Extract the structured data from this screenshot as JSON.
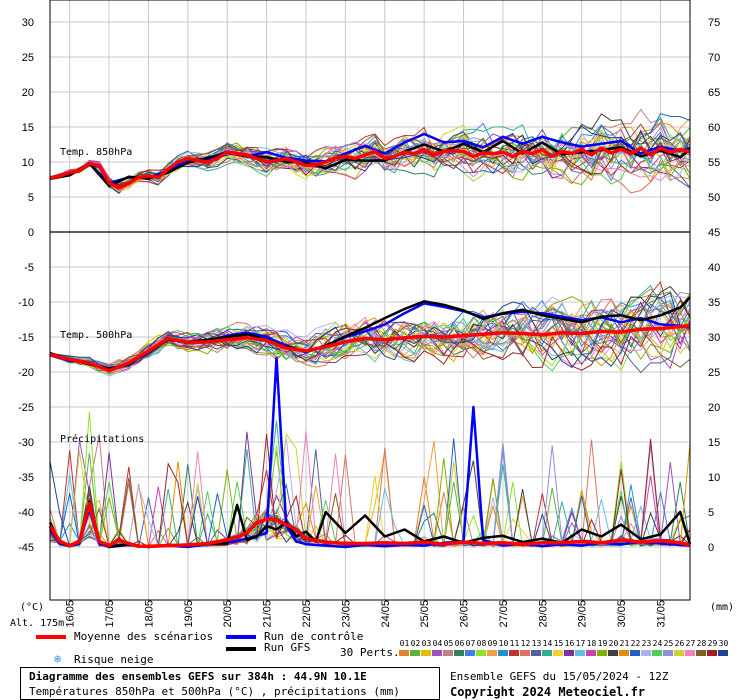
{
  "chart_data": {
    "type": "line",
    "dates": [
      "16/05",
      "17/05",
      "18/05",
      "19/05",
      "20/05",
      "21/05",
      "22/05",
      "23/05",
      "24/05",
      "25/05",
      "26/05",
      "27/05",
      "28/05",
      "29/05",
      "30/05",
      "31/05"
    ],
    "left_axis": {
      "unit_label": "(°C)",
      "ticks": [
        30,
        25,
        20,
        15,
        10,
        5,
        0,
        -5,
        -10,
        -15,
        -20,
        -25,
        -30,
        -35,
        -40,
        -45
      ]
    },
    "right_axis": {
      "unit_label": "(mm)",
      "upper_ticks": [
        75,
        70,
        65,
        60,
        55,
        50
      ],
      "lower_ticks": [
        45,
        40,
        35,
        30,
        25,
        20,
        15,
        10,
        5,
        0
      ]
    },
    "panels": [
      {
        "label": "Temp. 850hPa",
        "quantity": "Temperature 850hPa (°C)",
        "ylim": [
          0,
          30
        ],
        "x_range": [
          15.5,
          31.75
        ],
        "series": [
          {
            "name": "Moyenne des scénarios",
            "color": "#ff0000",
            "x": [
              15.5,
              15.75,
              16,
              16.25,
              16.5,
              16.75,
              17,
              17.25,
              17.5,
              17.75,
              18,
              18.25,
              18.5,
              18.75,
              19,
              19.25,
              19.5,
              19.75,
              20,
              20.25,
              20.5,
              20.75,
              21,
              21.25,
              21.5,
              21.75,
              22,
              22.25,
              22.5,
              22.75,
              23,
              23.25,
              23.5,
              23.75,
              24,
              24.25,
              24.5,
              24.75,
              25,
              25.25,
              25.5,
              25.75,
              26,
              26.25,
              26.5,
              26.75,
              27,
              27.25,
              27.5,
              27.75,
              28,
              28.25,
              28.5,
              28.75,
              29,
              29.25,
              29.5,
              29.75,
              30,
              30.25,
              30.5,
              30.75,
              31,
              31.25,
              31.5,
              31.75
            ],
            "y": [
              7.7,
              8,
              8.5,
              8.8,
              9.8,
              9.5,
              7,
              6.3,
              7,
              7.8,
              8,
              7.8,
              9,
              10,
              10.5,
              10.2,
              10,
              10.5,
              11.4,
              11.2,
              11,
              10.5,
              10,
              10.2,
              10.5,
              10,
              9.5,
              9.6,
              10,
              10.6,
              10.8,
              10.5,
              11,
              11.5,
              10.5,
              10.8,
              11.4,
              11.2,
              11.8,
              11,
              11.5,
              11.6,
              11.5,
              10.8,
              11.3,
              11.2,
              11.4,
              10.8,
              11.5,
              11.2,
              11.8,
              10.8,
              11.5,
              11.2,
              11.8,
              11,
              12,
              11.3,
              11.8,
              11.2,
              12,
              11,
              12,
              11.4,
              11.8,
              11.5
            ]
          },
          {
            "name": "Run de contrôle",
            "color": "#0000ff",
            "x": [
              15.5,
              16,
              16.5,
              17,
              17.5,
              18,
              18.5,
              19,
              19.5,
              20,
              20.5,
              21,
              21.5,
              22,
              22.5,
              23,
              23.5,
              24,
              24.5,
              25,
              25.5,
              26,
              26.5,
              27,
              27.5,
              28,
              28.5,
              29,
              29.5,
              30,
              30.5,
              31,
              31.5,
              31.75
            ],
            "y": [
              7.8,
              8.2,
              9.8,
              7,
              7.8,
              7.7,
              8.8,
              10.3,
              10.4,
              11.5,
              10.8,
              11.4,
              10.6,
              10.2,
              10.1,
              11.2,
              12.3,
              11.2,
              12.8,
              14,
              12.8,
              13,
              12.1,
              13.6,
              12.6,
              13.6,
              12.8,
              12.2,
              12.6,
              13,
              11.2,
              12.2,
              11.6,
              12
            ]
          },
          {
            "name": "Run GFS",
            "color": "#000000",
            "x": [
              15.5,
              16,
              16.5,
              17,
              17.5,
              18,
              18.5,
              19,
              19.5,
              20,
              20.5,
              21,
              21.5,
              22,
              22.5,
              23,
              23.5,
              24,
              24.5,
              25,
              25.5,
              26,
              26.5,
              27,
              27.5,
              28,
              28.5,
              29,
              29.5,
              30,
              30.5,
              31,
              31.5,
              31.75
            ],
            "y": [
              7.6,
              8.1,
              9.8,
              6.6,
              7.9,
              7.6,
              8.5,
              9.9,
              10.6,
              11.3,
              10.8,
              10.7,
              10,
              9.9,
              9.1,
              10.3,
              10.2,
              10.2,
              11.5,
              12.5,
              11.5,
              12.6,
              11.4,
              13,
              11.2,
              12.8,
              11.1,
              11.4,
              11.7,
              12.1,
              10.8,
              11.6,
              10.7,
              11.8
            ]
          }
        ]
      },
      {
        "label": "Temp. 500hPa",
        "quantity": "Temperature 500hPa (°C)",
        "ylim": [
          -25,
          0
        ],
        "x_range": [
          15.5,
          31.75
        ],
        "series": [
          {
            "name": "Moyenne des scénarios",
            "color": "#ff0000",
            "x": [
              15.5,
              16,
              16.5,
              17,
              17.5,
              18,
              18.5,
              19,
              19.5,
              20,
              20.5,
              21,
              21.5,
              22,
              22.5,
              23,
              23.5,
              24,
              24.5,
              25,
              25.5,
              26,
              26.5,
              27,
              27.5,
              28,
              28.5,
              29,
              29.5,
              30,
              30.5,
              31,
              31.5,
              31.75
            ],
            "y": [
              -17.5,
              -18.2,
              -18.7,
              -19.8,
              -18.7,
              -17,
              -15.2,
              -15.8,
              -15.7,
              -15.4,
              -15.1,
              -15.5,
              -16.6,
              -17,
              -16.4,
              -15.7,
              -15.2,
              -15.4,
              -15.1,
              -14.9,
              -15,
              -14.8,
              -14.6,
              -14.4,
              -14.5,
              -14.7,
              -14.4,
              -14.5,
              -14.2,
              -14.3,
              -13.9,
              -13.8,
              -13.5,
              -13.4
            ]
          },
          {
            "name": "Run de contrôle",
            "color": "#0000ff",
            "x": [
              15.5,
              16,
              16.5,
              17,
              17.5,
              18,
              18.5,
              19,
              19.5,
              20,
              20.5,
              21,
              21.5,
              22,
              22.5,
              23,
              23.5,
              24,
              24.5,
              25,
              25.5,
              26,
              26.5,
              27,
              27.5,
              28,
              28.5,
              29,
              29.5,
              30,
              30.5,
              31,
              31.5,
              31.75
            ],
            "y": [
              -17.6,
              -18.4,
              -18.6,
              -19.9,
              -18.6,
              -17.3,
              -15.2,
              -15.9,
              -15.6,
              -14.8,
              -14.4,
              -15,
              -16.2,
              -17.2,
              -16.2,
              -15,
              -14.2,
              -13.2,
              -11.6,
              -10.2,
              -10.7,
              -11.3,
              -12.2,
              -11.7,
              -11.4,
              -11.6,
              -12.1,
              -12.6,
              -12.2,
              -12.9,
              -12.3,
              -13.2,
              -13.4,
              -13.6
            ]
          },
          {
            "name": "Run GFS",
            "color": "#000000",
            "x": [
              15.5,
              16,
              16.5,
              17,
              17.5,
              18,
              18.5,
              19,
              19.5,
              20,
              20.5,
              21,
              21.5,
              22,
              22.5,
              23,
              23.5,
              24,
              24.5,
              25,
              25.5,
              26,
              26.5,
              27,
              27.5,
              28,
              28.5,
              29,
              29.5,
              30,
              30.5,
              31,
              31.5,
              31.75
            ],
            "y": [
              -17.3,
              -18.2,
              -18.9,
              -19.5,
              -18.9,
              -17.1,
              -15.4,
              -15.7,
              -15.4,
              -15,
              -14.6,
              -15.4,
              -16.4,
              -17,
              -16.3,
              -14.9,
              -13.7,
              -12.3,
              -11,
              -9.9,
              -10.4,
              -11.2,
              -12.4,
              -11.6,
              -11.1,
              -11.9,
              -12.4,
              -12.9,
              -12.1,
              -11.9,
              -12.6,
              -11.9,
              -10.8,
              -9.3
            ]
          }
        ]
      },
      {
        "label": "Précipitations",
        "quantity": "Précipitations (mm)",
        "ylim": [
          0,
          45
        ],
        "x_range": [
          15.5,
          31.75
        ],
        "series": [
          {
            "name": "Moyenne des scénarios",
            "color": "#ff0000",
            "x": [
              15.5,
              15.75,
              16,
              16.25,
              16.5,
              16.75,
              17,
              17.25,
              17.5,
              17.75,
              18,
              18.5,
              19,
              19.5,
              20,
              20.25,
              20.5,
              20.75,
              21,
              21.25,
              21.5,
              21.75,
              22,
              22.5,
              23,
              23.5,
              24,
              24.5,
              25,
              25.5,
              26,
              26.5,
              27,
              27.5,
              28,
              28.5,
              29,
              29.5,
              30,
              30.5,
              31,
              31.5,
              31.75
            ],
            "y": [
              3,
              0.8,
              0.2,
              0.8,
              6.2,
              0.8,
              0.2,
              1,
              0.5,
              0.1,
              0.1,
              0.2,
              0.3,
              0.5,
              1,
              1.4,
              2,
              3.5,
              4,
              3.9,
              3.2,
              2.5,
              1.2,
              0.7,
              0.5,
              0.5,
              0.6,
              0.5,
              0.7,
              0.4,
              0.7,
              0.5,
              0.6,
              0.4,
              0.6,
              0.6,
              0.8,
              0.6,
              1,
              0.7,
              0.9,
              0.6,
              0.3
            ]
          },
          {
            "name": "Run de contrôle",
            "color": "#0000ff",
            "x": [
              15.5,
              15.75,
              16,
              16.25,
              16.5,
              16.75,
              17,
              17.5,
              18,
              18.5,
              19,
              19.5,
              20,
              20.5,
              21,
              21.25,
              21.5,
              21.75,
              22,
              22.5,
              23,
              23.5,
              24,
              24.5,
              25,
              25.5,
              26,
              26.25,
              26.5,
              27,
              27.5,
              28,
              28.5,
              29,
              29.5,
              30,
              30.5,
              31,
              31.5,
              31.75
            ],
            "y": [
              2.5,
              0.5,
              0.1,
              0.5,
              5.5,
              0.5,
              0,
              0.3,
              0,
              0.2,
              0,
              0.4,
              0.6,
              1.2,
              2,
              27,
              3,
              0.8,
              0.4,
              0.2,
              0,
              0.3,
              0.1,
              0.3,
              0.2,
              0.6,
              0.8,
              20,
              1,
              0.2,
              0.5,
              0.1,
              0.4,
              0.2,
              0.6,
              0.4,
              0.7,
              0.5,
              0.3,
              0.2
            ]
          },
          {
            "name": "Run GFS",
            "color": "#000000",
            "x": [
              15.5,
              15.75,
              16,
              16.25,
              16.5,
              16.75,
              17,
              17.5,
              18,
              18.5,
              19,
              19.5,
              20,
              20.25,
              20.5,
              20.75,
              21,
              21.25,
              21.5,
              21.75,
              22,
              22.25,
              22.5,
              23,
              23.5,
              24,
              24.5,
              25,
              25.5,
              26,
              26.5,
              27,
              27.5,
              28,
              28.5,
              29,
              29.5,
              30,
              30.5,
              31,
              31.5,
              31.75
            ],
            "y": [
              3.5,
              0.6,
              0.1,
              0.8,
              6.5,
              0.8,
              0,
              0.4,
              0,
              0.3,
              0.2,
              0.5,
              0.5,
              6,
              1,
              1.5,
              3,
              2.5,
              3.5,
              1.5,
              2.2,
              0.8,
              5,
              2,
              4.5,
              1.5,
              2.5,
              0.8,
              1.5,
              0.6,
              1.3,
              1.6,
              0.7,
              1.2,
              0.6,
              2.5,
              1.5,
              3.2,
              1.1,
              1.8,
              5,
              0.4
            ]
          }
        ]
      }
    ],
    "ensemble_members": [
      "01",
      "02",
      "03",
      "04",
      "05",
      "06",
      "07",
      "08",
      "09",
      "10",
      "11",
      "12",
      "13",
      "14",
      "15",
      "16",
      "17",
      "18",
      "19",
      "20",
      "21",
      "22",
      "23",
      "24",
      "25",
      "26",
      "27",
      "28",
      "29",
      "30"
    ],
    "member_colors": [
      "#e08030",
      "#60b040",
      "#e0c000",
      "#a050c0",
      "#c08080",
      "#308060",
      "#4080e0",
      "#90e030",
      "#f0a040",
      "#2090d0",
      "#c03030",
      "#e07060",
      "#5060a0",
      "#30b090",
      "#f0d030",
      "#8030a0",
      "#60c0e0",
      "#d040b0",
      "#80b000",
      "#404040",
      "#e09000",
      "#2060c0",
      "#b0b0f0",
      "#50d050",
      "#9090e0",
      "#d0d030",
      "#f080c0",
      "#806020",
      "#a02020",
      "#2040a0"
    ]
  },
  "labels": {
    "left_unit": "(°C)",
    "right_unit": "(mm)",
    "altitude": "Alt. 175m",
    "panel_850": "Temp. 850hPa",
    "panel_500": "Temp. 500hPa",
    "panel_precip": "Précipitations"
  },
  "legend": {
    "mean": "Moyenne des scénarios",
    "control": "Run de contrôle",
    "gfs": "Run GFS",
    "snow": "Risque neige",
    "perts": "30 Perts.",
    "colors": {
      "mean": "#ff0000",
      "control": "#0000ff",
      "gfs": "#000000",
      "snow": "#3399dd"
    }
  },
  "footer": {
    "title": "Diagramme des ensembles GEFS sur 384h : 44.9N 10.1E",
    "subtitle": "Températures 850hPa et 500hPa (°C) , précipitations (mm)",
    "run_info": "Ensemble GEFS du 15/05/2024 - 12Z",
    "copyright": "Copyright 2024 Meteociel.fr"
  }
}
